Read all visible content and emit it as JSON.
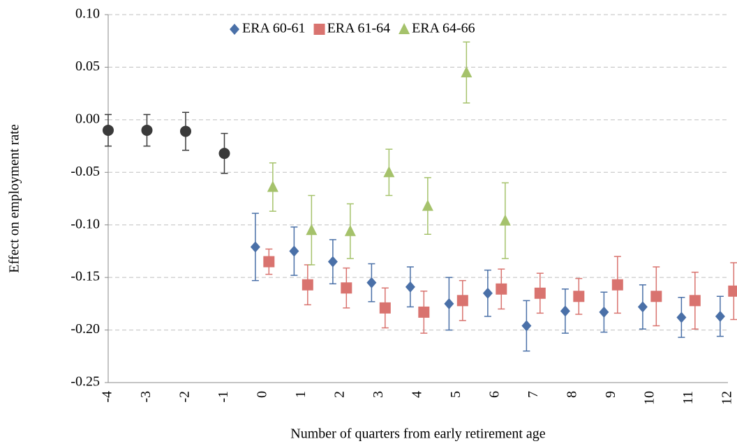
{
  "chart_data": {
    "type": "errorbar",
    "x_label": "Number of quarters from early retirement age",
    "y_label": "Effect on employment rate",
    "categories": [
      -4,
      -3,
      -2,
      -1,
      0,
      1,
      2,
      3,
      4,
      5,
      6,
      7,
      8,
      9,
      10,
      11,
      12
    ],
    "ylim": [
      -0.25,
      0.1
    ],
    "yticks": [
      {
        "value": -0.25,
        "label": "-0.25"
      },
      {
        "value": -0.2,
        "label": "-0.20"
      },
      {
        "value": -0.15,
        "label": "-0.15"
      },
      {
        "value": -0.1,
        "label": "-0.10"
      },
      {
        "value": -0.05,
        "label": "-0.05"
      },
      {
        "value": 0,
        "label": "0.00"
      },
      {
        "value": 0.05,
        "label": "0.05"
      },
      {
        "value": 0.1,
        "label": "0.10"
      }
    ],
    "grid": true,
    "legend": "top",
    "series": [
      {
        "color": "#3a3a3a",
        "marker": "circle",
        "values": [
          -0.01,
          -0.01,
          -0.011,
          -0.032,
          null,
          null,
          null,
          null,
          null,
          null,
          null,
          null,
          null,
          null,
          null,
          null,
          null
        ],
        "errors": [
          0.015,
          0.015,
          0.018,
          0.019,
          null,
          null,
          null,
          null,
          null,
          null,
          null,
          null,
          null,
          null,
          null,
          null,
          null
        ]
      },
      {
        "name": "ERA 60-61",
        "color": "#4a70a8",
        "marker": "diamond",
        "values": [
          null,
          null,
          null,
          null,
          -0.121,
          -0.125,
          -0.135,
          -0.155,
          -0.159,
          -0.175,
          -0.165,
          -0.196,
          -0.182,
          -0.183,
          -0.178,
          -0.188,
          -0.187
        ],
        "errors": [
          null,
          null,
          null,
          null,
          0.032,
          0.023,
          0.021,
          0.018,
          0.019,
          0.025,
          0.022,
          0.024,
          0.021,
          0.019,
          0.021,
          0.019,
          0.019
        ]
      },
      {
        "name": "ERA 61-64",
        "color": "#d9736f",
        "marker": "square",
        "values": [
          null,
          null,
          null,
          null,
          -0.135,
          -0.157,
          -0.16,
          -0.179,
          -0.183,
          -0.172,
          -0.161,
          -0.165,
          -0.168,
          -0.157,
          -0.168,
          -0.172,
          -0.163
        ],
        "errors": [
          null,
          null,
          null,
          null,
          0.012,
          0.019,
          0.019,
          0.019,
          0.02,
          0.019,
          0.019,
          0.019,
          0.017,
          0.027,
          0.028,
          0.027,
          0.027
        ]
      },
      {
        "name": "ERA 64-66",
        "color": "#a5c26b",
        "marker": "triangle",
        "values": [
          null,
          null,
          null,
          null,
          -0.064,
          -0.105,
          -0.106,
          -0.05,
          -0.082,
          0.045,
          -0.096,
          null,
          null,
          null,
          null,
          null,
          null
        ],
        "errors": [
          null,
          null,
          null,
          null,
          0.023,
          0.033,
          0.026,
          0.022,
          0.027,
          0.029,
          0.036,
          null,
          null,
          null,
          null,
          null,
          null
        ]
      }
    ]
  }
}
